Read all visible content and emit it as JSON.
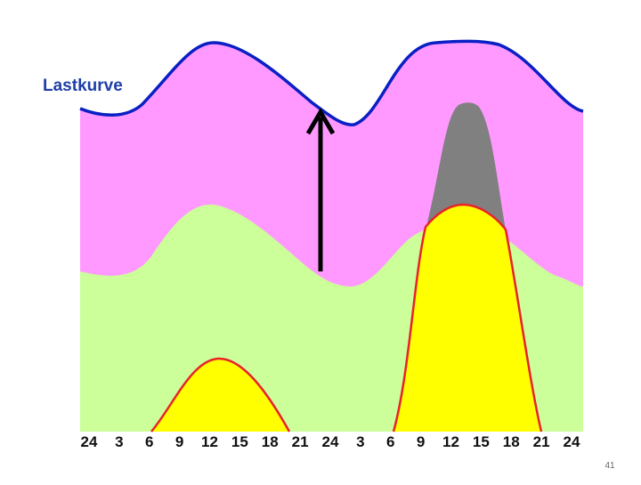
{
  "diagram": {
    "curve_label": "Lastkurve",
    "x_ticks": [
      "24",
      "3",
      "6",
      "9",
      "12",
      "15",
      "18",
      "21",
      "24",
      "3",
      "6",
      "9",
      "12",
      "15",
      "18",
      "21",
      "24"
    ],
    "colors": {
      "load_band": "#ff99ff",
      "base_band": "#ccff99",
      "peak_area": "#ffff00",
      "peak_outline": "#e8222a",
      "peak_excess": "#808080",
      "load_curve": "#0a1fc4",
      "arrow": "#000000"
    }
  },
  "footer": {
    "slide_number": "41"
  }
}
